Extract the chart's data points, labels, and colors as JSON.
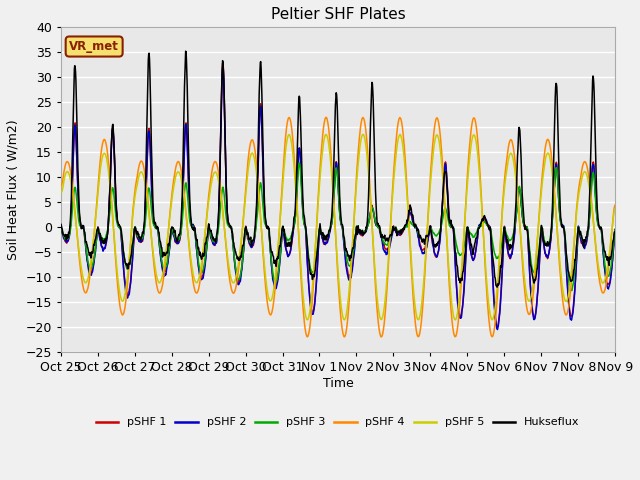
{
  "title": "Peltier SHF Plates",
  "xlabel": "Time",
  "ylabel": "Soil Heat Flux ( W/m2)",
  "ylim": [
    -25,
    40
  ],
  "background_color": "#f0f0f0",
  "plot_bg_color": "#e8e8e8",
  "grid_color": "white",
  "annotation_text": "VR_met",
  "annotation_bg": "#f5e070",
  "annotation_border": "#8b2000",
  "xtick_labels": [
    "Oct 25",
    "Oct 26",
    "Oct 27",
    "Oct 28",
    "Oct 29",
    "Oct 30",
    "Oct 31",
    "Nov 1",
    "Nov 2",
    "Nov 3",
    "Nov 4",
    "Nov 5",
    "Nov 6",
    "Nov 7",
    "Nov 8",
    "Nov 9"
  ],
  "legend": [
    "pSHF 1",
    "pSHF 2",
    "pSHF 3",
    "pSHF 4",
    "pSHF 5",
    "Hukseflux"
  ],
  "colors": [
    "#cc0000",
    "#0000cc",
    "#00aa00",
    "#ff8800",
    "#cccc00",
    "#000000"
  ],
  "figsize": [
    6.4,
    4.8
  ],
  "dpi": 100
}
